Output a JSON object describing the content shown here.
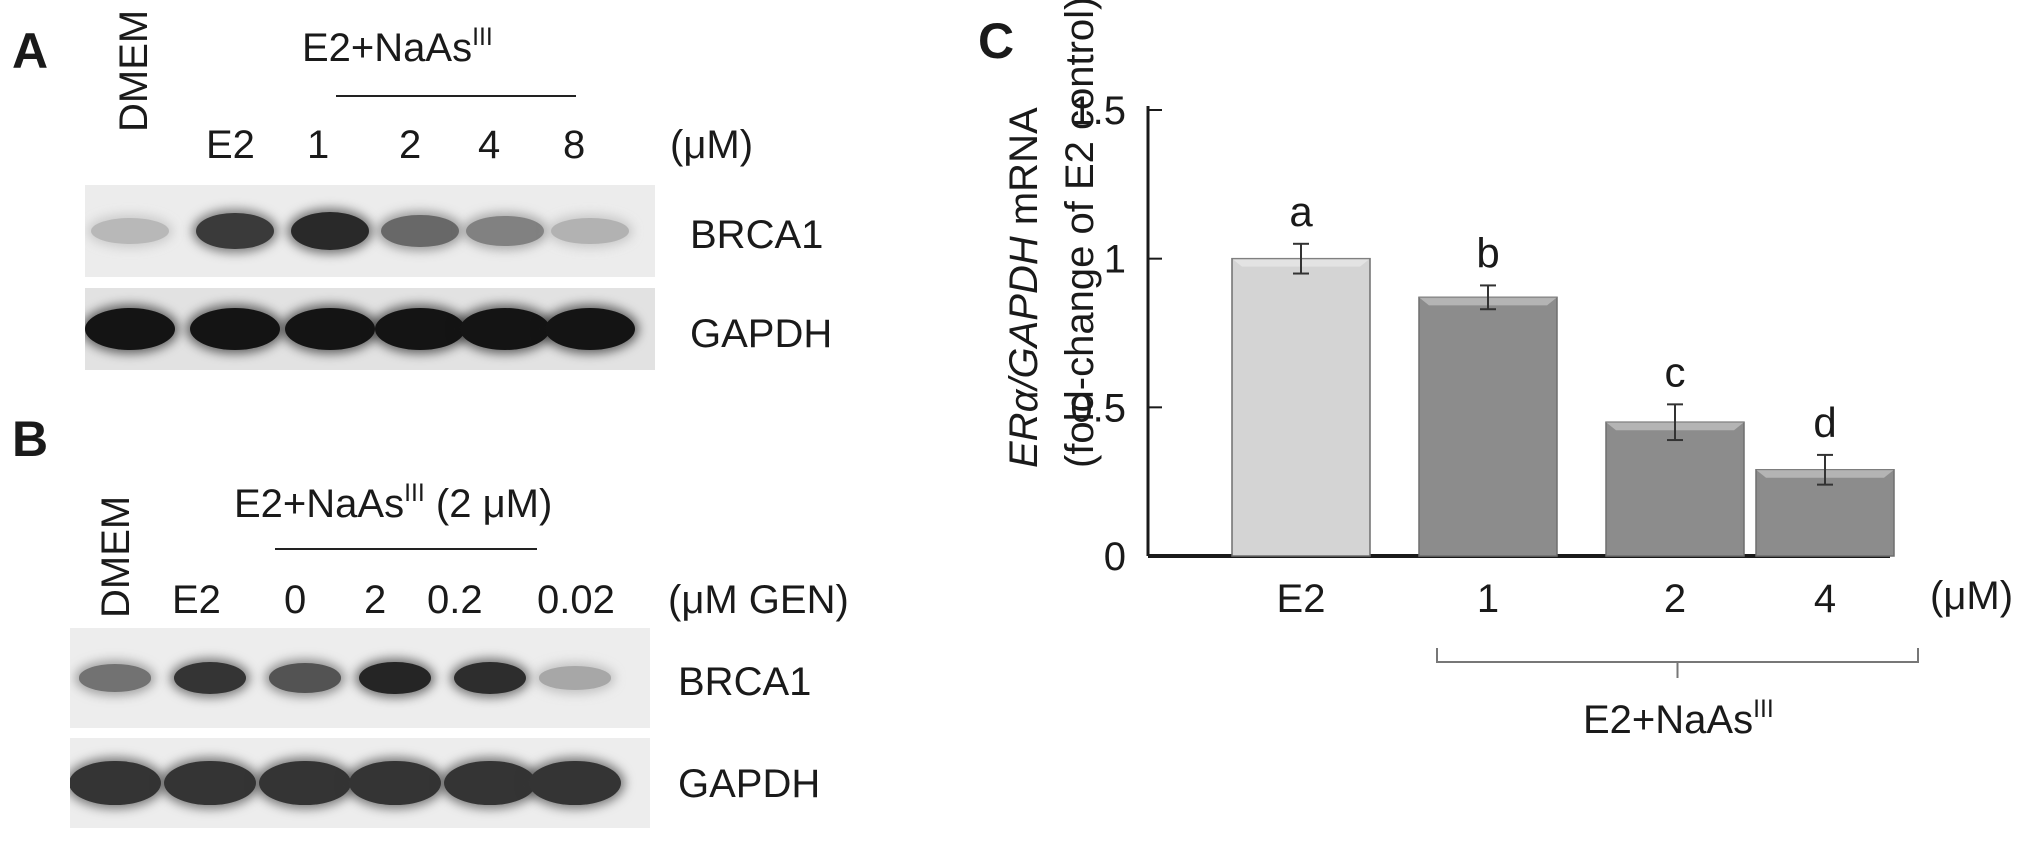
{
  "panelA": {
    "letter": "A",
    "lanes": [
      "DMEM",
      "E2",
      "1",
      "2",
      "4",
      "8"
    ],
    "group_label": "E2+NaAs",
    "group_sup": "III",
    "unit": "(μM)",
    "bands": [
      {
        "label": "BRCA1",
        "intensity": [
          0.22,
          0.82,
          0.9,
          0.6,
          0.48,
          0.25
        ]
      },
      {
        "label": "GAPDH",
        "intensity": [
          1,
          1,
          1,
          1,
          1,
          1
        ]
      }
    ]
  },
  "panelB": {
    "letter": "B",
    "lanes": [
      "DMEM",
      "E2",
      "0",
      "2",
      "0.2",
      "0.02"
    ],
    "group_label": "E2+NaAs",
    "group_sup": "III",
    "group_suffix": " (2 μM)",
    "unit": "(μM GEN)",
    "bands": [
      {
        "label": "BRCA1",
        "intensity": [
          0.55,
          0.85,
          0.7,
          0.92,
          0.88,
          0.3
        ]
      },
      {
        "label": "GAPDH",
        "intensity": [
          0.85,
          0.85,
          0.85,
          0.85,
          0.85,
          0.85
        ]
      }
    ]
  },
  "panelC": {
    "letter": "C",
    "ylabel_italic": "ERα/GAPDH",
    "ylabel_rest": " mRNA",
    "ylabel_line2": "(fold-change of E2 control)",
    "group_label": "E2+NaAs",
    "group_sup": "III",
    "unit": "(μM)",
    "colors": {
      "first_bar": "#d4d4d4",
      "other_bars": "#8c8c8c",
      "axis": "#1a1a1a"
    }
  },
  "chart_data": {
    "type": "bar",
    "categories": [
      "E2",
      "1",
      "2",
      "4"
    ],
    "values": [
      1.0,
      0.87,
      0.45,
      0.29
    ],
    "errors": [
      0.05,
      0.04,
      0.06,
      0.05
    ],
    "annotations": [
      "a",
      "b",
      "c",
      "d"
    ],
    "yticks": [
      0,
      0.5,
      1,
      1.5
    ],
    "ytick_labels": [
      "0",
      "0.5",
      "1",
      "1.5"
    ],
    "ylim": [
      0,
      1.5
    ],
    "xlabel": "",
    "ylabel": "ERα/GAPDH mRNA (fold-change of E2 control)"
  }
}
